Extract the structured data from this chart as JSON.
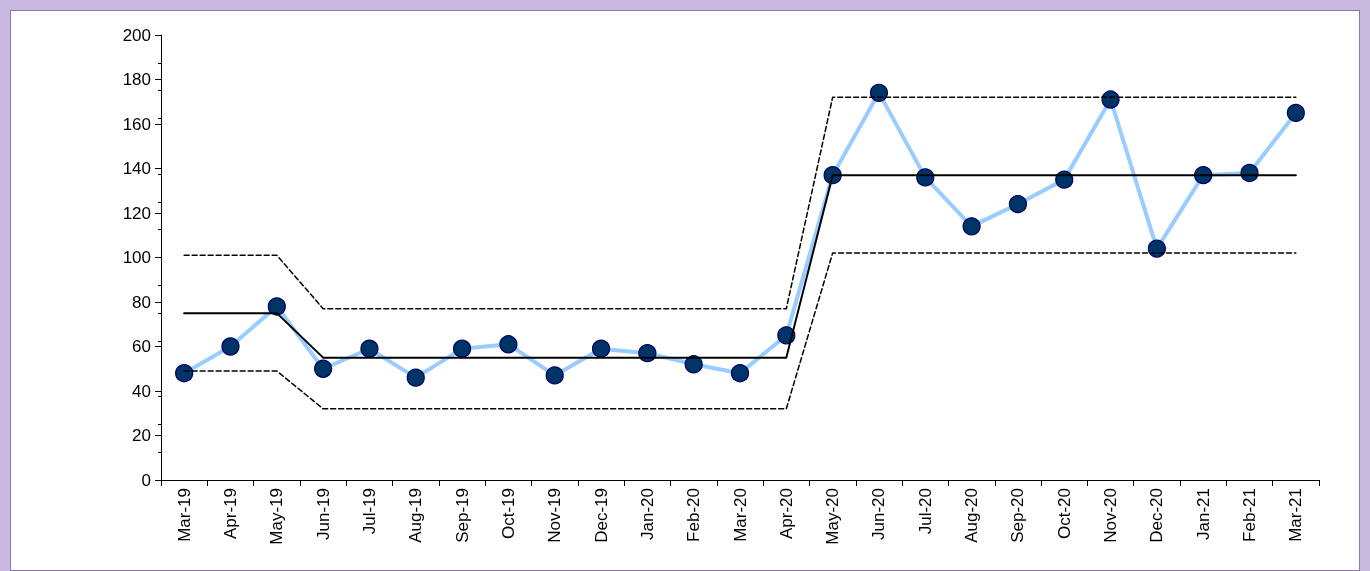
{
  "chart_data": {
    "type": "line",
    "categories": [
      "Mar-19",
      "Apr-19",
      "May-19",
      "Jun-19",
      "Jul-19",
      "Aug-19",
      "Sep-19",
      "Oct-19",
      "Nov-19",
      "Dec-19",
      "Jan-20",
      "Feb-20",
      "Mar-20",
      "Apr-20",
      "May-20",
      "Jun-20",
      "Jul-20",
      "Aug-20",
      "Sep-20",
      "Oct-20",
      "Nov-20",
      "Dec-20",
      "Jan-21",
      "Feb-21",
      "Mar-21"
    ],
    "ylim": [
      0,
      200
    ],
    "yticks": [
      0,
      20,
      40,
      60,
      80,
      100,
      120,
      140,
      160,
      180,
      200
    ],
    "grid": false,
    "series": [
      {
        "color": "#99ccff",
        "line_style": "solid",
        "marker": "circle",
        "colors": [
          "#003366",
          "#003366",
          "#003366",
          "#003366",
          "#003366",
          "#003366",
          "#003366",
          "#003366",
          "#003366",
          "#003366",
          "#003366",
          "#003366",
          "#003366",
          "#003366",
          "#003366",
          "#003366",
          "#003366",
          "#003366",
          "#003366",
          "#003366",
          "#003366",
          "#003366",
          "#003366",
          "#003366",
          "#003366"
        ],
        "values": [
          48,
          60,
          78,
          50,
          59,
          46,
          59,
          61,
          47,
          59,
          57,
          52,
          48,
          65,
          137,
          174,
          136,
          114,
          124,
          135,
          171,
          104,
          137,
          138,
          165
        ]
      },
      {
        "color": "#000000",
        "line_style": "dashed",
        "marker": "none",
        "values": [
          101,
          101,
          101,
          77,
          77,
          77,
          77,
          77,
          77,
          77,
          77,
          77,
          77,
          77,
          172,
          172,
          172,
          172,
          172,
          172,
          172,
          172,
          172,
          172,
          172
        ]
      },
      {
        "color": "#000000",
        "line_style": "dashed",
        "marker": "none",
        "values": [
          49,
          49,
          49,
          32,
          32,
          32,
          32,
          32,
          32,
          32,
          32,
          32,
          32,
          32,
          102,
          102,
          102,
          102,
          102,
          102,
          102,
          102,
          102,
          102,
          102
        ]
      },
      {
        "color": "#000000",
        "line_style": "solid",
        "marker": "none",
        "values": [
          75,
          75,
          75,
          55,
          55,
          55,
          55,
          55,
          55,
          55,
          55,
          55,
          55,
          55,
          137,
          137,
          137,
          137,
          137,
          137,
          137,
          137,
          137,
          137,
          137
        ]
      }
    ]
  }
}
